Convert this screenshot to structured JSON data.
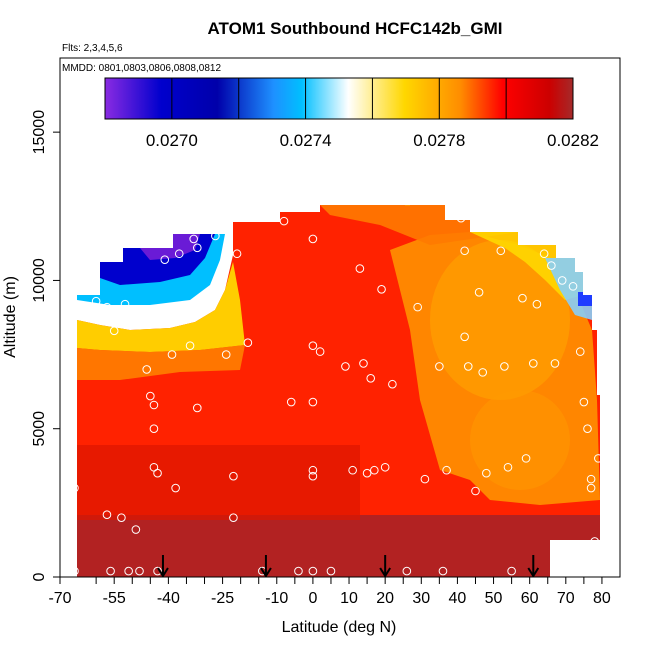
{
  "chart_data": {
    "type": "heatmap",
    "title": "ATOM1 Southbound HCFC142b_GMI",
    "flights_note": "Flts: 2,3,4,5,6",
    "dates_note": "MMDD: 0801,0803,0806,0808,0812",
    "xlabel": "Latitude (deg N)",
    "ylabel": "Altitude (m)",
    "xlim": [
      -70,
      85
    ],
    "ylim": [
      0,
      17500
    ],
    "x_ticks": [
      -70,
      -55,
      -40,
      -25,
      -10,
      0,
      10,
      20,
      30,
      40,
      50,
      60,
      70,
      80
    ],
    "x_tick_labels": [
      "-70",
      "-55",
      "-40",
      "-25",
      "-10",
      "0",
      "10",
      "20",
      "30",
      "40",
      "50",
      "60",
      "70",
      "80"
    ],
    "x_minor_ticks": [
      -60,
      -50,
      -45,
      -35,
      -30,
      -20,
      -15,
      -5,
      5,
      15,
      25,
      35,
      45,
      55,
      65,
      75
    ],
    "y_ticks": [
      0,
      5000,
      10000,
      15000
    ],
    "y_tick_labels": [
      "0",
      "5000",
      "10000",
      "15000"
    ],
    "colorbar": {
      "min": 0.0268,
      "max": 0.0282,
      "tick_values": [
        0.027,
        0.0274,
        0.0278,
        0.0282
      ],
      "tick_labels": [
        "0.0270",
        "0.0274",
        "0.0278",
        "0.0282"
      ],
      "divisions": [
        0.0268,
        0.027,
        0.0272,
        0.0274,
        0.0276,
        0.0278,
        0.028,
        0.0282
      ],
      "colors": [
        "#8a2be2",
        "#0000cd",
        "#00bfff",
        "#ffffff",
        "#ffd700",
        "#ff0000",
        "#a52a2a"
      ]
    },
    "arrow_latitudes": [
      -41.5,
      -13,
      20,
      61
    ],
    "observation_points": [
      [
        -66,
        10200
      ],
      [
        -66,
        3000
      ],
      [
        -66,
        200
      ],
      [
        -60,
        9300
      ],
      [
        -57,
        9100
      ],
      [
        -57,
        2100
      ],
      [
        -56,
        200
      ],
      [
        -55,
        8300
      ],
      [
        -53,
        2000
      ],
      [
        -52,
        9200
      ],
      [
        -52,
        8900
      ],
      [
        -51,
        200
      ],
      [
        -49,
        9000
      ],
      [
        -49,
        1600
      ],
      [
        -48,
        200
      ],
      [
        -47,
        9000
      ],
      [
        -46,
        7000
      ],
      [
        -45,
        6100
      ],
      [
        -44,
        5800
      ],
      [
        -44,
        5000
      ],
      [
        -44,
        3700
      ],
      [
        -43,
        3500
      ],
      [
        -43,
        200
      ],
      [
        -42,
        11600
      ],
      [
        -41,
        10700
      ],
      [
        -39,
        7500
      ],
      [
        -38,
        3000
      ],
      [
        -37,
        10900
      ],
      [
        -34,
        7800
      ],
      [
        -33,
        11400
      ],
      [
        -32,
        11100
      ],
      [
        -32,
        5700
      ],
      [
        -27,
        11500
      ],
      [
        -24,
        7500
      ],
      [
        -22,
        3400
      ],
      [
        -22,
        2000
      ],
      [
        -21,
        10900
      ],
      [
        -18,
        7900
      ],
      [
        -14,
        200
      ],
      [
        -8,
        12000
      ],
      [
        -6,
        5900
      ],
      [
        -4,
        200
      ],
      [
        0,
        11400
      ],
      [
        0,
        7800
      ],
      [
        0,
        5900
      ],
      [
        0,
        3600
      ],
      [
        0,
        3400
      ],
      [
        0,
        200
      ],
      [
        2,
        7600
      ],
      [
        5,
        200
      ],
      [
        9,
        7100
      ],
      [
        11,
        3600
      ],
      [
        13,
        10400
      ],
      [
        14,
        7200
      ],
      [
        15,
        3500
      ],
      [
        16,
        6700
      ],
      [
        17,
        3600
      ],
      [
        19,
        9700
      ],
      [
        20,
        3700
      ],
      [
        22,
        6500
      ],
      [
        26,
        200
      ],
      [
        29,
        9100
      ],
      [
        31,
        3300
      ],
      [
        35,
        7100
      ],
      [
        36,
        200
      ],
      [
        37,
        3600
      ],
      [
        41,
        12100
      ],
      [
        42,
        11000
      ],
      [
        42,
        8100
      ],
      [
        43,
        7100
      ],
      [
        45,
        2900
      ],
      [
        46,
        9600
      ],
      [
        47,
        6900
      ],
      [
        48,
        3500
      ],
      [
        52,
        11000
      ],
      [
        53,
        7100
      ],
      [
        54,
        3700
      ],
      [
        55,
        200
      ],
      [
        56,
        12300
      ],
      [
        58,
        9400
      ],
      [
        59,
        4000
      ],
      [
        61,
        7200
      ],
      [
        62,
        9200
      ],
      [
        64,
        10900
      ],
      [
        66,
        10500
      ],
      [
        67,
        7200
      ],
      [
        69,
        10000
      ],
      [
        72,
        9800
      ],
      [
        74,
        7600
      ],
      [
        75,
        5900
      ],
      [
        76,
        5000
      ],
      [
        77,
        3300
      ],
      [
        77,
        3000
      ],
      [
        78,
        1200
      ],
      [
        78,
        800
      ],
      [
        79,
        4000
      ]
    ]
  }
}
